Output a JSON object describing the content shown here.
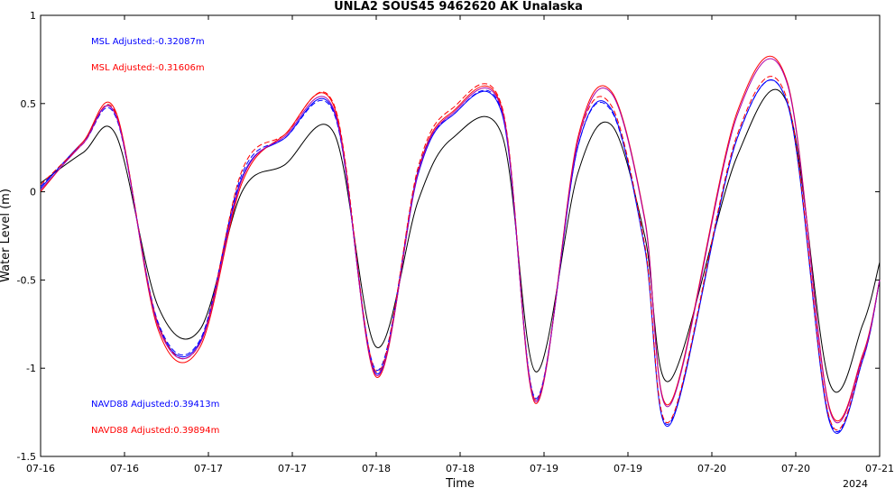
{
  "chart_data": {
    "type": "line",
    "title": "UNLA2 SOUS45 9462620 AK Unalaska",
    "xlabel": "Time",
    "ylabel": "Water Level (m)",
    "ylim": [
      -1.5,
      1
    ],
    "yticks": [
      1,
      0.5,
      0,
      -0.5,
      -1,
      -1.5
    ],
    "ytick_labels": [
      "1",
      "0.5",
      "0",
      "-0.5",
      "-1",
      "-1.5"
    ],
    "xlim": [
      0,
      10
    ],
    "xticks": [
      0,
      1,
      2,
      3,
      4,
      5,
      6,
      7,
      8,
      9,
      10
    ],
    "xtick_labels": [
      "07-16",
      "07-16",
      "07-17",
      "07-17",
      "07-18",
      "07-18",
      "07-19",
      "07-19",
      "07-20",
      "07-20",
      "07-21"
    ],
    "x_year_label": "2024",
    "grid": false,
    "annotations": [
      {
        "text": "MSL Adjusted:-0.32087m",
        "color": "#0000ff",
        "anchor": "top-left"
      },
      {
        "text": "MSL Adjusted:-0.31606m",
        "color": "#ff0000",
        "anchor": "top-left"
      },
      {
        "text": "NAVD88 Adjusted:0.39413m",
        "color": "#0000ff",
        "anchor": "bottom-left"
      },
      {
        "text": "NAVD88 Adjusted:0.39894m",
        "color": "#ff0000",
        "anchor": "bottom-left"
      }
    ],
    "key_points_x": [
      0,
      0.5,
      0.9,
      1.4,
      1.9,
      2.4,
      2.9,
      3.5,
      4.0,
      4.5,
      4.9,
      5.5,
      5.9,
      6.4,
      6.8,
      7.2,
      7.5,
      8.3,
      8.9,
      9.4,
      9.8,
      10
    ],
    "series": [
      {
        "style": "solid",
        "color": "#000000",
        "values": [
          0.05,
          0.22,
          0.32,
          -0.65,
          -0.78,
          0.0,
          0.15,
          0.33,
          -0.88,
          -0.05,
          0.3,
          0.32,
          -1.02,
          0.1,
          0.38,
          -0.25,
          -1.07,
          0.2,
          0.5,
          -1.08,
          -0.75,
          -0.4
        ]
      },
      {
        "style": "solid",
        "color": "#0000ff",
        "values": [
          0.02,
          0.28,
          0.43,
          -0.75,
          -0.85,
          0.08,
          0.3,
          0.45,
          -1.03,
          0.1,
          0.43,
          0.44,
          -1.18,
          0.25,
          0.47,
          -0.32,
          -1.32,
          0.3,
          0.5,
          -1.3,
          -0.95,
          -0.5
        ]
      },
      {
        "style": "solid",
        "color": "#ff0000",
        "values": [
          0.0,
          0.28,
          0.45,
          -0.78,
          -0.88,
          0.05,
          0.32,
          0.48,
          -1.05,
          0.12,
          0.45,
          0.47,
          -1.2,
          0.3,
          0.57,
          -0.15,
          -1.2,
          0.45,
          0.62,
          -1.22,
          -0.92,
          -0.5
        ]
      },
      {
        "style": "dashed",
        "color": "#0000ff",
        "values": [
          0.03,
          0.27,
          0.42,
          -0.74,
          -0.84,
          0.1,
          0.3,
          0.44,
          -1.01,
          0.12,
          0.43,
          0.45,
          -1.17,
          0.25,
          0.46,
          -0.31,
          -1.31,
          0.3,
          0.5,
          -1.29,
          -0.95,
          -0.5
        ]
      },
      {
        "style": "dashed",
        "color": "#ff0000",
        "values": [
          0.04,
          0.27,
          0.44,
          -0.75,
          -0.86,
          0.12,
          0.32,
          0.49,
          -1.02,
          0.14,
          0.47,
          0.48,
          -1.18,
          0.28,
          0.49,
          -0.3,
          -1.3,
          0.32,
          0.52,
          -1.28,
          -0.94,
          -0.5
        ]
      },
      {
        "style": "solid",
        "color": "#aa00aa",
        "values": [
          0.01,
          0.27,
          0.43,
          -0.76,
          -0.86,
          0.07,
          0.31,
          0.46,
          -1.04,
          0.11,
          0.44,
          0.46,
          -1.19,
          0.28,
          0.56,
          -0.16,
          -1.21,
          0.43,
          0.61,
          -1.23,
          -0.93,
          -0.5
        ]
      }
    ]
  }
}
